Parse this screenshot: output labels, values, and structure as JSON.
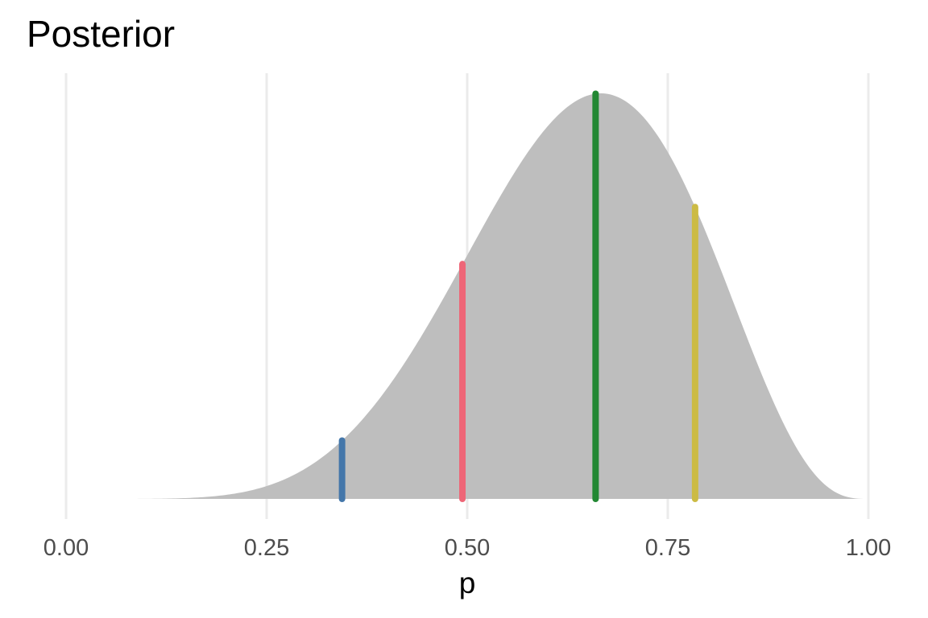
{
  "chart_data": {
    "type": "area",
    "title": "Posterior",
    "xlabel": "p",
    "ylabel": "",
    "xlim": [
      0,
      1
    ],
    "x_ticks": [
      0,
      0.25,
      0.5,
      0.75,
      1
    ],
    "x_tick_labels": [
      "0.00",
      "0.25",
      "0.50",
      "0.75",
      "1.00"
    ],
    "grid": "vertical major gridlines",
    "y_axis_shown": false,
    "series": [
      {
        "type": "density",
        "distribution": "Beta(7, 4)",
        "color": "#bebebe",
        "x_range": [
          0.085,
          1.0
        ]
      }
    ],
    "vlines": [
      {
        "x": 0.344,
        "color": "#4477aa"
      },
      {
        "x": 0.494,
        "color": "#ee6677"
      },
      {
        "x": 0.66,
        "color": "#228833"
      },
      {
        "x": 0.784,
        "color": "#ccbb44"
      }
    ]
  }
}
